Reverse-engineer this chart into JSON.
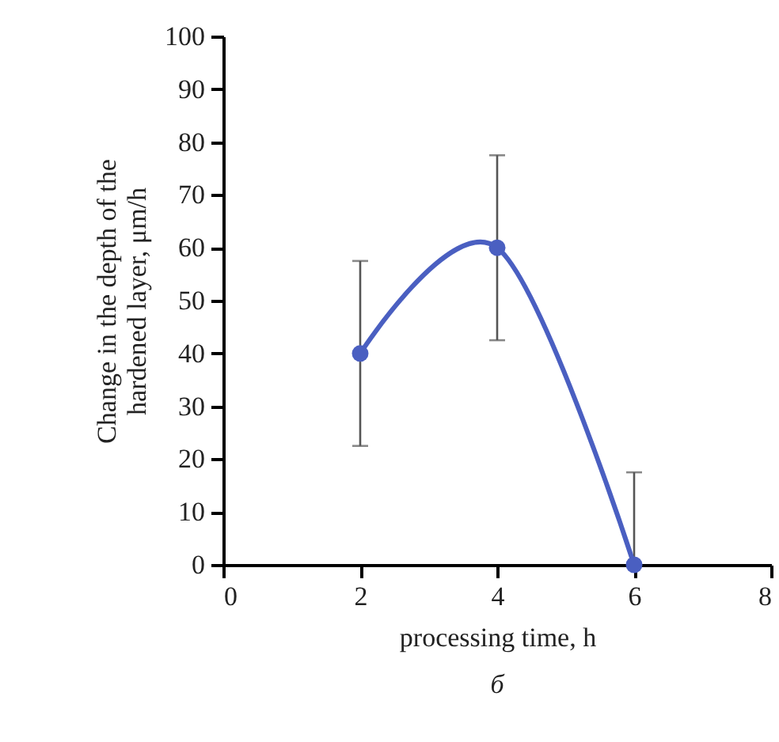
{
  "chart_data": {
    "type": "line",
    "xlabel": "processing time, h",
    "ylabel": "Change in the depth of the hardened layer, μm/h",
    "annotations": [
      "б"
    ],
    "x": [
      2,
      4,
      6
    ],
    "series": [
      {
        "color": "#4a5fc1",
        "values": [
          40,
          60,
          0
        ],
        "errors": [
          17.5,
          17.5,
          [
            0,
            17.5
          ]
        ]
      }
    ],
    "xlim": [
      0,
      8
    ],
    "xticks": [
      0,
      2,
      4,
      6,
      8
    ],
    "ylim": [
      0,
      100
    ],
    "yticks": [
      0,
      10,
      20,
      30,
      40,
      50,
      60,
      70,
      80,
      90,
      100
    ],
    "grid": false,
    "marker": "circle",
    "line_style": "solid"
  }
}
